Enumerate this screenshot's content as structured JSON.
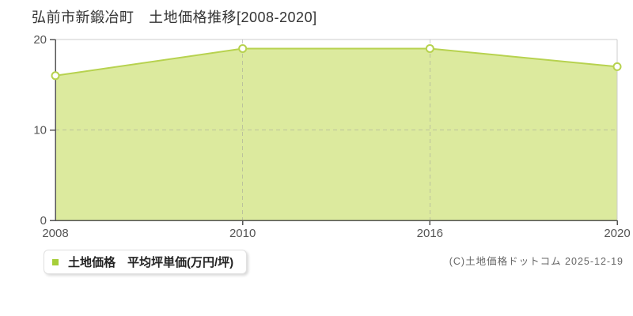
{
  "header": {
    "title": "弘前市新鍛冶町　土地価格推移[2008-2020]"
  },
  "legend": {
    "marker_color": "#a6ce39",
    "label": "土地価格　平均坪単価(万円/坪)"
  },
  "footer": {
    "copyright": "(C)土地価格ドットコム 2025-12-19"
  },
  "chart_data": {
    "type": "area",
    "title": "弘前市新鍛冶町 土地価格推移[2008-2020]",
    "categories": [
      "2008",
      "2010",
      "2016",
      "2020"
    ],
    "series": [
      {
        "name": "土地価格 平均坪単価(万円/坪)",
        "values": [
          16,
          19,
          19,
          17
        ]
      }
    ],
    "xlabel": "",
    "ylabel": "",
    "unit": "万円/坪",
    "ylim": [
      0,
      20
    ],
    "yticks": [
      0,
      10,
      20
    ],
    "grid": {
      "horizontal_dashed_at": [
        10
      ],
      "vertical_dashed_at": [
        "2010",
        "2016"
      ]
    },
    "legend_position": "bottom-left",
    "colors": {
      "area_fill": "#dcea9e",
      "line": "#b7d24f",
      "marker_fill": "#ffffff",
      "axis": "#555555",
      "border": "#cccccc",
      "grid_dash": "#999999",
      "tick_text": "#555555"
    }
  }
}
